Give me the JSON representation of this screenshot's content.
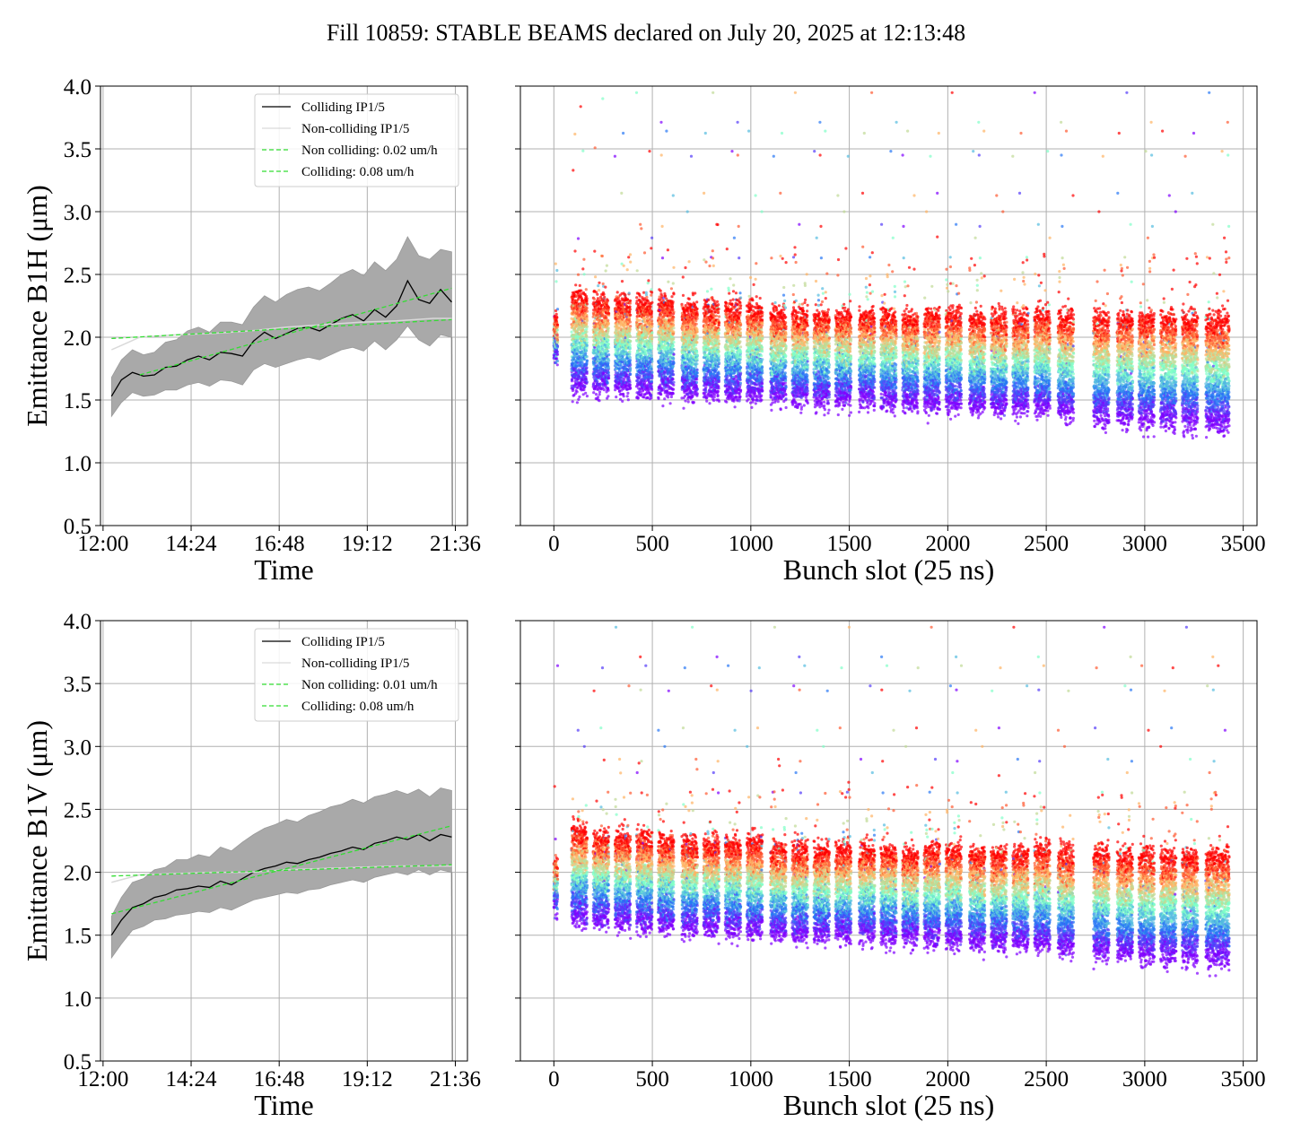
{
  "figure": {
    "title": "Fill 10859: STABLE BEAMS declared on July 20, 2025 at 12:13:48"
  },
  "chart_data": [
    {
      "id": "b1h-time",
      "type": "line",
      "xlabel": "Time",
      "ylabel": "Emittance B1H (μm)",
      "x_ticks": [
        "12:00",
        "14:24",
        "16:48",
        "19:12",
        "21:36"
      ],
      "x_tick_hours": [
        12.0,
        14.4,
        16.8,
        19.2,
        21.6
      ],
      "xlim_hours": [
        11.93,
        21.93
      ],
      "ylim": [
        0.5,
        4.0
      ],
      "y_ticks": [
        "0.5",
        "1.0",
        "1.5",
        "2.0",
        "2.5",
        "3.0",
        "3.5",
        "4.0"
      ],
      "grid": true,
      "legend_position": "upper right",
      "colors": {
        "colliding": "#000000",
        "noncolliding": "#d9d9d9",
        "band": "#a9a9a9",
        "fit": "#33dd33"
      },
      "series": [
        {
          "name": "Colliding IP1/5",
          "style": "solid",
          "color": "#000000",
          "x_hours": [
            12.23,
            12.5,
            12.8,
            13.1,
            13.4,
            13.7,
            14.0,
            14.3,
            14.6,
            14.9,
            15.2,
            15.5,
            15.8,
            16.1,
            16.4,
            16.7,
            17.0,
            17.3,
            17.6,
            17.9,
            18.2,
            18.5,
            18.8,
            19.1,
            19.4,
            19.7,
            20.0,
            20.3,
            20.6,
            20.9,
            21.2,
            21.5
          ],
          "y": [
            1.53,
            1.66,
            1.72,
            1.69,
            1.7,
            1.76,
            1.77,
            1.82,
            1.85,
            1.82,
            1.88,
            1.87,
            1.85,
            1.97,
            2.04,
            1.99,
            2.03,
            2.07,
            2.08,
            2.05,
            2.1,
            2.15,
            2.18,
            2.13,
            2.22,
            2.16,
            2.25,
            2.45,
            2.3,
            2.27,
            2.38,
            2.28
          ]
        },
        {
          "name": "Non-colliding IP1/5",
          "style": "solid",
          "color": "#d9d9d9",
          "x_hours": [
            12.23,
            13.0,
            14.0,
            15.0,
            16.0,
            17.0,
            18.0,
            19.0,
            20.0,
            21.0,
            21.5
          ],
          "y": [
            1.9,
            2.0,
            2.02,
            2.03,
            2.05,
            2.08,
            2.1,
            2.12,
            2.13,
            2.15,
            2.15
          ]
        },
        {
          "name": "Non colliding: 0.02 um/h",
          "style": "dashed",
          "color": "#33dd33",
          "x_hours": [
            12.23,
            21.5
          ],
          "y": [
            1.99,
            2.14
          ]
        },
        {
          "name": "Colliding: 0.08 um/h",
          "style": "dashed",
          "color": "#33dd33",
          "x_hours": [
            13.0,
            21.5
          ],
          "y": [
            1.7,
            2.39
          ]
        }
      ],
      "band": {
        "x_hours": [
          12.23,
          12.5,
          12.8,
          13.1,
          13.4,
          13.7,
          14.0,
          14.3,
          14.6,
          14.9,
          15.2,
          15.5,
          15.8,
          16.1,
          16.4,
          16.7,
          17.0,
          17.3,
          17.6,
          17.9,
          18.2,
          18.5,
          18.8,
          19.1,
          19.4,
          19.7,
          20.0,
          20.3,
          20.6,
          20.9,
          21.2,
          21.5
        ],
        "lower": [
          1.37,
          1.48,
          1.56,
          1.53,
          1.54,
          1.58,
          1.58,
          1.62,
          1.64,
          1.61,
          1.66,
          1.65,
          1.62,
          1.74,
          1.79,
          1.76,
          1.79,
          1.82,
          1.84,
          1.82,
          1.86,
          1.9,
          1.92,
          1.89,
          1.97,
          1.9,
          1.98,
          2.09,
          1.98,
          1.93,
          2.02,
          2.0
        ],
        "upper": [
          1.68,
          1.82,
          1.9,
          1.86,
          1.88,
          1.96,
          1.98,
          2.05,
          2.08,
          2.04,
          2.12,
          2.12,
          2.1,
          2.24,
          2.33,
          2.28,
          2.34,
          2.38,
          2.4,
          2.37,
          2.43,
          2.5,
          2.54,
          2.49,
          2.6,
          2.53,
          2.62,
          2.8,
          2.65,
          2.62,
          2.7,
          2.68
        ]
      }
    },
    {
      "id": "b1h-bunch",
      "type": "scatter",
      "xlabel": "Bunch slot (25 ns)",
      "ylabel": "",
      "x_ticks": [
        "0",
        "500",
        "1000",
        "1500",
        "2000",
        "2500",
        "3000",
        "3500"
      ],
      "x_tick_values": [
        0,
        500,
        1000,
        1500,
        2000,
        2500,
        3000,
        3500
      ],
      "xlim": [
        -170,
        3570
      ],
      "ylim": [
        0.5,
        4.0
      ],
      "grid": true,
      "colormap": "rainbow",
      "trains_start": [
        0,
        90,
        200,
        310,
        420,
        530,
        650,
        760,
        870,
        980,
        1100,
        1210,
        1320,
        1430,
        1550,
        1660,
        1770,
        1880,
        1990,
        2110,
        2220,
        2330,
        2440,
        2560,
        2740,
        2860,
        2970,
        3080,
        3190,
        3310
      ],
      "trains_len": [
        20,
        80,
        80,
        80,
        80,
        80,
        80,
        80,
        80,
        80,
        80,
        80,
        80,
        80,
        80,
        80,
        80,
        80,
        80,
        80,
        80,
        80,
        80,
        80,
        80,
        80,
        80,
        80,
        80,
        120
      ],
      "band_high": [
        2.1,
        2.3,
        2.25,
        2.25,
        2.25,
        2.25,
        2.2,
        2.2,
        2.2,
        2.2,
        2.15,
        2.15,
        2.15,
        2.15,
        2.15,
        2.15,
        2.12,
        2.15,
        2.15,
        2.12,
        2.12,
        2.12,
        2.15,
        2.12,
        2.12,
        2.12,
        2.12,
        2.12,
        2.12,
        2.1
      ],
      "band_low": [
        1.85,
        1.62,
        1.62,
        1.62,
        1.6,
        1.6,
        1.58,
        1.58,
        1.56,
        1.56,
        1.54,
        1.53,
        1.52,
        1.52,
        1.52,
        1.5,
        1.5,
        1.48,
        1.48,
        1.47,
        1.46,
        1.46,
        1.45,
        1.42,
        1.38,
        1.37,
        1.36,
        1.35,
        1.35,
        1.33
      ]
    },
    {
      "id": "b1v-time",
      "type": "line",
      "xlabel": "Time",
      "ylabel": "Emittance B1V (μm)",
      "x_ticks": [
        "12:00",
        "14:24",
        "16:48",
        "19:12",
        "21:36"
      ],
      "x_tick_hours": [
        12.0,
        14.4,
        16.8,
        19.2,
        21.6
      ],
      "xlim_hours": [
        11.93,
        21.93
      ],
      "ylim": [
        0.5,
        4.0
      ],
      "y_ticks": [
        "0.5",
        "1.0",
        "1.5",
        "2.0",
        "2.5",
        "3.0",
        "3.5",
        "4.0"
      ],
      "grid": true,
      "legend_position": "upper right",
      "colors": {
        "colliding": "#000000",
        "noncolliding": "#d9d9d9",
        "band": "#a9a9a9",
        "fit": "#33dd33"
      },
      "series": [
        {
          "name": "Colliding IP1/5",
          "style": "solid",
          "color": "#000000",
          "x_hours": [
            12.23,
            12.5,
            12.8,
            13.1,
            13.4,
            13.7,
            14.0,
            14.3,
            14.6,
            14.9,
            15.2,
            15.5,
            15.8,
            16.1,
            16.4,
            16.7,
            17.0,
            17.3,
            17.6,
            17.9,
            18.2,
            18.5,
            18.8,
            19.1,
            19.4,
            19.7,
            20.0,
            20.3,
            20.6,
            20.9,
            21.2,
            21.5
          ],
          "y": [
            1.5,
            1.62,
            1.72,
            1.75,
            1.8,
            1.82,
            1.86,
            1.87,
            1.89,
            1.88,
            1.93,
            1.9,
            1.95,
            2.0,
            2.03,
            2.05,
            2.08,
            2.07,
            2.1,
            2.12,
            2.15,
            2.17,
            2.2,
            2.18,
            2.23,
            2.25,
            2.28,
            2.26,
            2.3,
            2.25,
            2.3,
            2.28
          ]
        },
        {
          "name": "Non-colliding IP1/5",
          "style": "solid",
          "color": "#d9d9d9",
          "x_hours": [
            12.23,
            13.0,
            14.0,
            15.0,
            16.0,
            17.0,
            18.0,
            19.0,
            20.0,
            21.0,
            21.5
          ],
          "y": [
            1.92,
            1.98,
            1.99,
            2.0,
            2.0,
            2.02,
            2.03,
            2.04,
            2.05,
            2.05,
            2.05
          ]
        },
        {
          "name": "Non colliding: 0.01 um/h",
          "style": "dashed",
          "color": "#33dd33",
          "x_hours": [
            12.23,
            21.5
          ],
          "y": [
            1.97,
            2.06
          ]
        },
        {
          "name": "Colliding: 0.08 um/h",
          "style": "dashed",
          "color": "#33dd33",
          "x_hours": [
            12.23,
            21.5
          ],
          "y": [
            1.67,
            2.37
          ]
        }
      ],
      "band": {
        "x_hours": [
          12.23,
          12.5,
          12.8,
          13.1,
          13.4,
          13.7,
          14.0,
          14.3,
          14.6,
          14.9,
          15.2,
          15.5,
          15.8,
          16.1,
          16.4,
          16.7,
          17.0,
          17.3,
          17.6,
          17.9,
          18.2,
          18.5,
          18.8,
          19.1,
          19.4,
          19.7,
          20.0,
          20.3,
          20.6,
          20.9,
          21.2,
          21.5
        ],
        "lower": [
          1.32,
          1.43,
          1.54,
          1.57,
          1.62,
          1.63,
          1.66,
          1.67,
          1.69,
          1.68,
          1.72,
          1.7,
          1.74,
          1.78,
          1.8,
          1.82,
          1.84,
          1.83,
          1.86,
          1.87,
          1.9,
          1.92,
          1.94,
          1.92,
          1.96,
          1.98,
          2.0,
          1.98,
          2.02,
          1.98,
          2.02,
          2.0
        ],
        "upper": [
          1.65,
          1.8,
          1.92,
          1.95,
          2.02,
          2.04,
          2.1,
          2.1,
          2.14,
          2.12,
          2.2,
          2.17,
          2.24,
          2.3,
          2.35,
          2.38,
          2.42,
          2.4,
          2.45,
          2.48,
          2.52,
          2.54,
          2.58,
          2.55,
          2.6,
          2.62,
          2.65,
          2.62,
          2.66,
          2.6,
          2.67,
          2.65
        ]
      }
    },
    {
      "id": "b1v-bunch",
      "type": "scatter",
      "xlabel": "Bunch slot (25 ns)",
      "ylabel": "",
      "x_ticks": [
        "0",
        "500",
        "1000",
        "1500",
        "2000",
        "2500",
        "3000",
        "3500"
      ],
      "x_tick_values": [
        0,
        500,
        1000,
        1500,
        2000,
        2500,
        3000,
        3500
      ],
      "xlim": [
        -170,
        3570
      ],
      "ylim": [
        0.5,
        4.0
      ],
      "grid": true,
      "colormap": "rainbow",
      "trains_start": [
        0,
        90,
        200,
        310,
        420,
        530,
        650,
        760,
        870,
        980,
        1100,
        1210,
        1320,
        1430,
        1550,
        1660,
        1770,
        1880,
        1990,
        2110,
        2220,
        2330,
        2440,
        2560,
        2740,
        2860,
        2970,
        3080,
        3190,
        3310
      ],
      "trains_len": [
        20,
        80,
        80,
        80,
        80,
        80,
        80,
        80,
        80,
        80,
        80,
        80,
        80,
        80,
        80,
        80,
        80,
        80,
        80,
        80,
        80,
        80,
        80,
        80,
        80,
        80,
        80,
        80,
        80,
        120
      ],
      "band_high": [
        2.05,
        2.3,
        2.25,
        2.25,
        2.25,
        2.22,
        2.2,
        2.2,
        2.2,
        2.2,
        2.15,
        2.15,
        2.15,
        2.15,
        2.15,
        2.15,
        2.12,
        2.15,
        2.15,
        2.12,
        2.12,
        2.12,
        2.15,
        2.12,
        2.12,
        2.1,
        2.1,
        2.1,
        2.1,
        2.1
      ],
      "band_low": [
        1.75,
        1.65,
        1.64,
        1.62,
        1.6,
        1.6,
        1.58,
        1.58,
        1.56,
        1.56,
        1.54,
        1.52,
        1.52,
        1.52,
        1.52,
        1.5,
        1.5,
        1.48,
        1.48,
        1.47,
        1.46,
        1.46,
        1.45,
        1.42,
        1.38,
        1.37,
        1.36,
        1.35,
        1.35,
        1.33
      ]
    }
  ]
}
